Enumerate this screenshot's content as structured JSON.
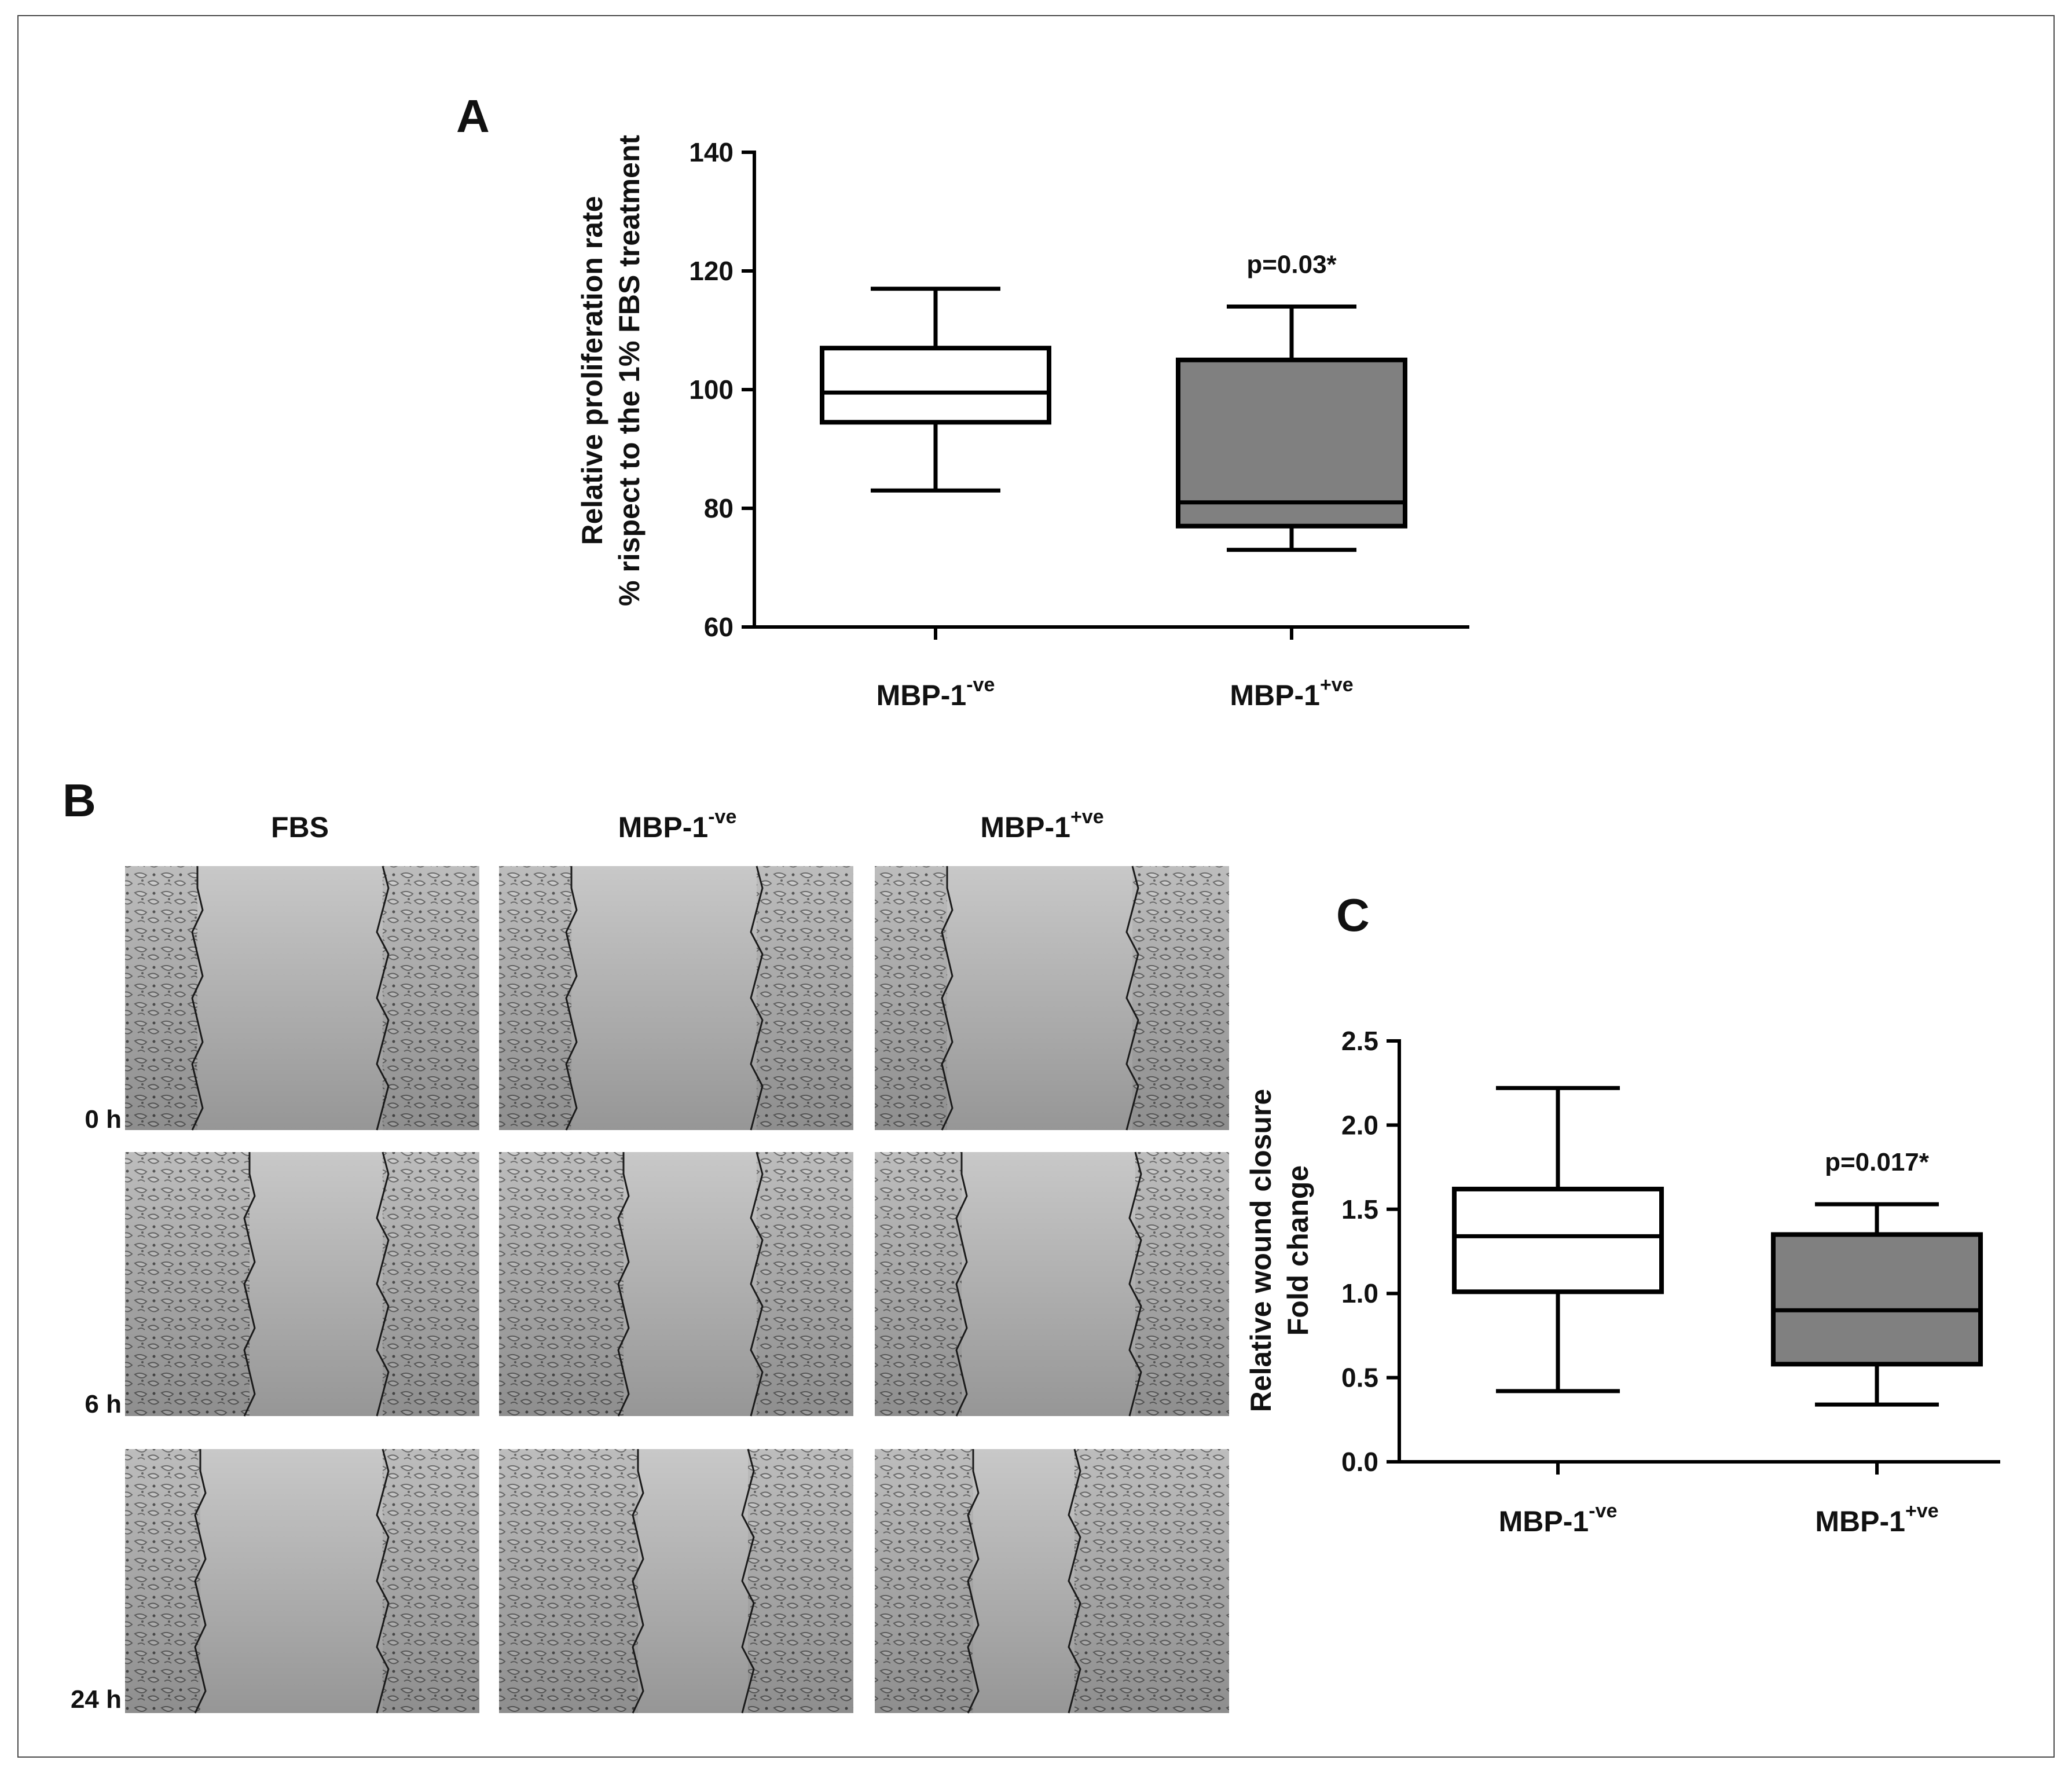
{
  "panels": {
    "A": {
      "letter": "A"
    },
    "B": {
      "letter": "B",
      "column_headers": [
        {
          "main": "FBS",
          "sup": ""
        },
        {
          "main": "MBP-1",
          "sup": "-ve"
        },
        {
          "main": "MBP-1",
          "sup": "+ve"
        }
      ],
      "row_labels": [
        "0 h",
        "6 h",
        "24 h"
      ]
    },
    "C": {
      "letter": "C"
    }
  },
  "chart_data": [
    {
      "id": "A",
      "type": "box",
      "title": "",
      "ylabel_lines": [
        "Relative proliferation rate",
        "% rispect to the 1% FBS treatment"
      ],
      "ylim": [
        60,
        140
      ],
      "yticks": [
        60,
        80,
        100,
        120,
        140
      ],
      "ytick_labels": [
        "60",
        "80",
        "100",
        "120",
        "140"
      ],
      "categories": [
        {
          "main": "MBP-1",
          "sup": "-ve"
        },
        {
          "main": "MBP-1",
          "sup": "+ve"
        }
      ],
      "boxes": [
        {
          "min": 83,
          "q1": 94.5,
          "median": 99.5,
          "q3": 107,
          "max": 117,
          "color": "#ffffff"
        },
        {
          "min": 73,
          "q1": 77,
          "median": 81,
          "q3": 105,
          "max": 114,
          "color": "#808080"
        }
      ],
      "annotations": [
        {
          "category_index": 1,
          "text": "p=0.03*"
        }
      ]
    },
    {
      "id": "C",
      "type": "box",
      "title": "",
      "ylabel_lines": [
        "Relative wound closure",
        "Fold change"
      ],
      "ylim": [
        0,
        2.5
      ],
      "yticks": [
        0,
        0.5,
        1,
        1.5,
        2,
        2.5
      ],
      "ytick_labels": [
        "0.0",
        "0.5",
        "1.0",
        "1.5",
        "2.0",
        "2.5"
      ],
      "categories": [
        {
          "main": "MBP-1",
          "sup": "-ve"
        },
        {
          "main": "MBP-1",
          "sup": "+ve"
        }
      ],
      "boxes": [
        {
          "min": 0.42,
          "q1": 1.01,
          "median": 1.34,
          "q3": 1.62,
          "max": 2.22,
          "color": "#ffffff"
        },
        {
          "min": 0.34,
          "q1": 0.58,
          "median": 0.9,
          "q3": 1.35,
          "max": 1.53,
          "color": "#808080"
        }
      ],
      "annotations": [
        {
          "category_index": 1,
          "text": "p=0.017*"
        }
      ]
    }
  ],
  "colors": {
    "axis": "#000000",
    "box_negative": "#ffffff",
    "box_positive": "#808080",
    "micrograph_background": "#c8c8c8",
    "wound_edge_line": "#1a1a1a"
  }
}
